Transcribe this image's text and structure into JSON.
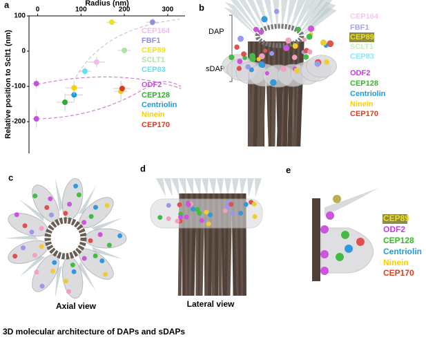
{
  "chart_data": {
    "type": "scatter",
    "panel_label": "a",
    "x_label": "Radius (nm)",
    "y_label": "Relative position to Sclt1 (nm)",
    "x_axis_position": "top",
    "xlim": [
      -20,
      340
    ],
    "xticks": [
      0,
      100,
      200,
      300
    ],
    "ylim": [
      -290,
      100
    ],
    "yticks": [
      100,
      0,
      -100,
      -200
    ],
    "series": [
      {
        "name": "CEP164",
        "color": "#f2bdea",
        "x": [
          136
        ],
        "values": [
          -31
        ],
        "xerr": [
          20
        ],
        "yerr": [
          15
        ]
      },
      {
        "name": "FBF1",
        "color": "#8f8fe6",
        "x": [
          265
        ],
        "values": [
          82
        ],
        "xerr": [
          15
        ],
        "yerr": [
          10
        ]
      },
      {
        "name": "CEP89",
        "color": "#f0e020",
        "label_background": "#8c8c48",
        "x": [
          171
        ],
        "values": [
          82
        ],
        "xerr": [
          12
        ],
        "yerr": [
          8
        ]
      },
      {
        "name": "SCLT1",
        "color": "#a8e6a0",
        "x": [
          200
        ],
        "values": [
          2
        ],
        "xerr": [
          15
        ],
        "yerr": [
          8
        ]
      },
      {
        "name": "CEP83",
        "color": "#66dff0",
        "x": [
          109
        ],
        "values": [
          -57
        ],
        "xerr": [
          15
        ],
        "yerr": [
          12
        ]
      },
      {
        "name": "ODF2",
        "color": "#c84ee0",
        "x": [
          -3,
          -3
        ],
        "values": [
          -92,
          -192
        ],
        "xerr": [
          10,
          10
        ],
        "yerr": [
          15,
          25
        ]
      },
      {
        "name": "CEP128",
        "color": "#2fae2f",
        "x": [
          63
        ],
        "values": [
          -145
        ],
        "xerr": [
          20
        ],
        "yerr": [
          25
        ]
      },
      {
        "name": "Centriolin",
        "color": "#2299dd",
        "x": [
          84
        ],
        "values": [
          -124
        ],
        "xerr": [
          20
        ],
        "yerr": [
          20
        ]
      },
      {
        "name": "Ninein",
        "color": "#f5d000",
        "x": [
          84,
          192
        ],
        "values": [
          -104,
          -114
        ],
        "xerr": [
          20,
          15
        ],
        "yerr": [
          20,
          30
        ]
      },
      {
        "name": "CEP170",
        "color": "#e0381a",
        "x": [
          195
        ],
        "values": [
          -106
        ],
        "xerr": [
          20
        ],
        "yerr": [
          15
        ]
      }
    ]
  },
  "panels": {
    "b": {
      "label": "b",
      "brackets": [
        "DAP",
        "sDAP"
      ],
      "legend": [
        {
          "name": "CEP164",
          "color": "#f3c9ef"
        },
        {
          "name": "FBF1",
          "color": "#a4a4ea"
        },
        {
          "name": "CEP89",
          "color": "#f0e020",
          "background": "#8c8c48"
        },
        {
          "name": "SCLT1",
          "color": "#c8eec2"
        },
        {
          "name": "CEP83",
          "color": "#86e8f5"
        },
        {
          "name": "ODF2",
          "color": "#c040e0"
        },
        {
          "name": "CEP128",
          "color": "#33bb22"
        },
        {
          "name": "Centriolin",
          "color": "#2299dd"
        },
        {
          "name": "Ninein",
          "color": "#ffcc00"
        },
        {
          "name": "CEP170",
          "color": "#e03c1c"
        }
      ]
    },
    "c": {
      "label": "c",
      "caption": "Axial view"
    },
    "d": {
      "label": "d",
      "caption": "Lateral view"
    },
    "e": {
      "label": "e",
      "legend": [
        {
          "name": "CEP89",
          "color": "#f0e020",
          "background": "#8c8c48"
        },
        {
          "name": "ODF2",
          "color": "#c040e0"
        },
        {
          "name": "CEP128",
          "color": "#33bb22"
        },
        {
          "name": "Centriolin",
          "color": "#2299dd"
        },
        {
          "name": "Ninein",
          "color": "#ffcc00"
        },
        {
          "name": "CEP170",
          "color": "#e03c1c"
        }
      ]
    }
  },
  "caption": "3D molecular architecture of DAPs and sDAPs"
}
